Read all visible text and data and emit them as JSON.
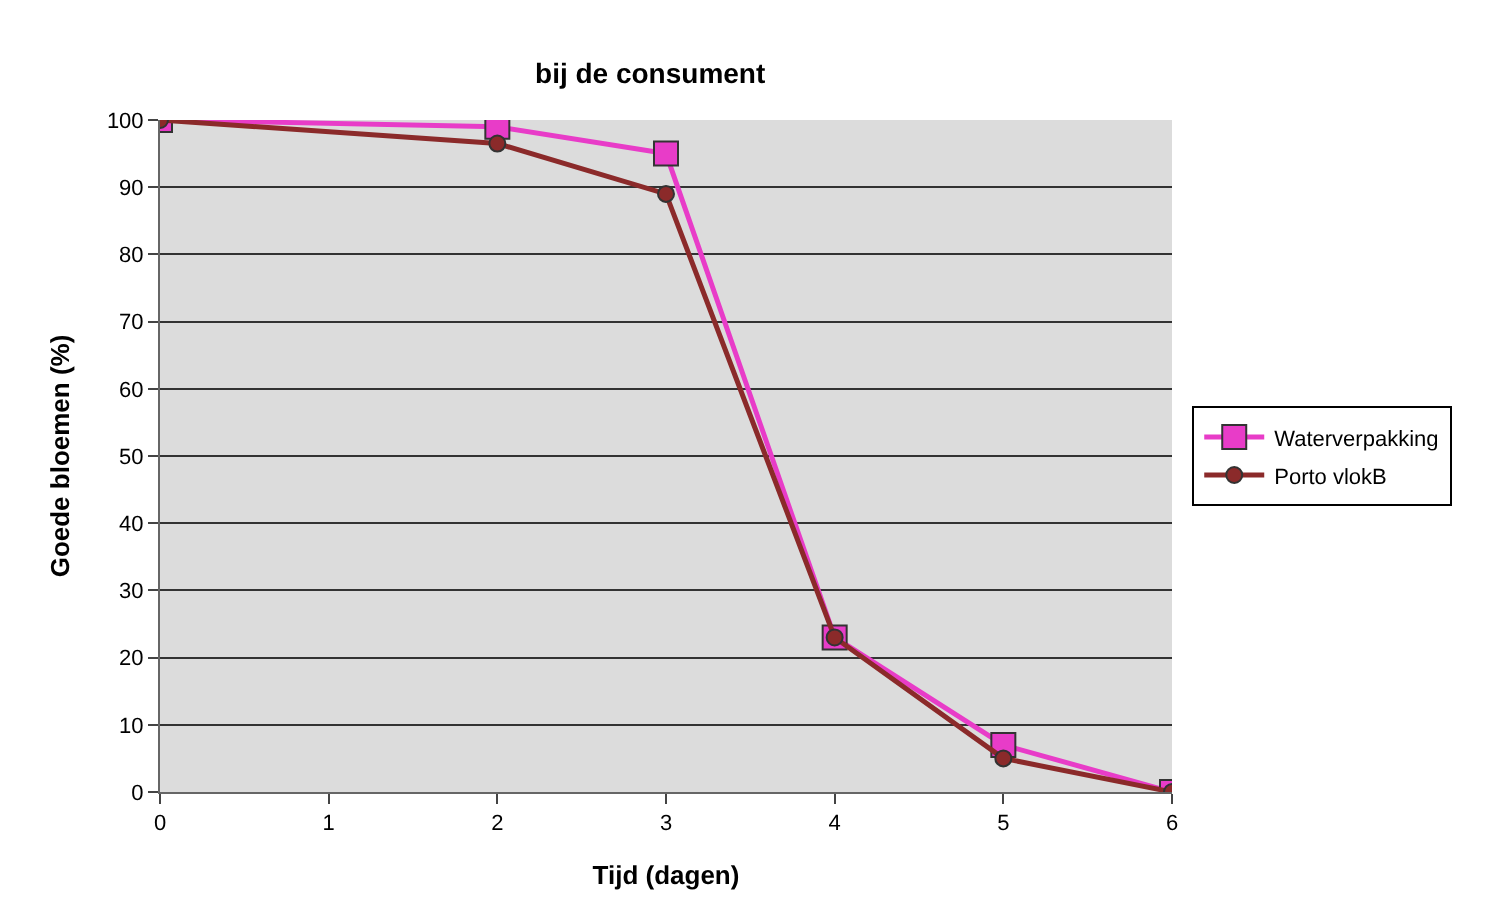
{
  "chart_data": {
    "type": "line",
    "title": "bij de consument",
    "xlabel": "Tijd (dagen)",
    "ylabel": "Goede bloemen (%)",
    "xlim": [
      0,
      6
    ],
    "xticks": [
      0,
      1,
      2,
      3,
      4,
      5,
      6
    ],
    "ylim": [
      0,
      100
    ],
    "yticks": [
      0,
      10,
      20,
      30,
      40,
      50,
      60,
      70,
      80,
      90,
      100
    ],
    "grid": "y",
    "legend": "right",
    "series": [
      {
        "name": "Waterverpakking",
        "color": "#e83cc8",
        "marker": "square",
        "x": [
          0,
          2,
          3,
          4,
          5,
          6
        ],
        "values": [
          100,
          99,
          95,
          23,
          7,
          0
        ]
      },
      {
        "name": "Porto vlokB",
        "color": "#8b2a2a",
        "marker": "circle",
        "x": [
          0,
          2,
          3,
          4,
          5,
          6
        ],
        "values": [
          100,
          96.5,
          89,
          23,
          5,
          0
        ]
      }
    ]
  }
}
